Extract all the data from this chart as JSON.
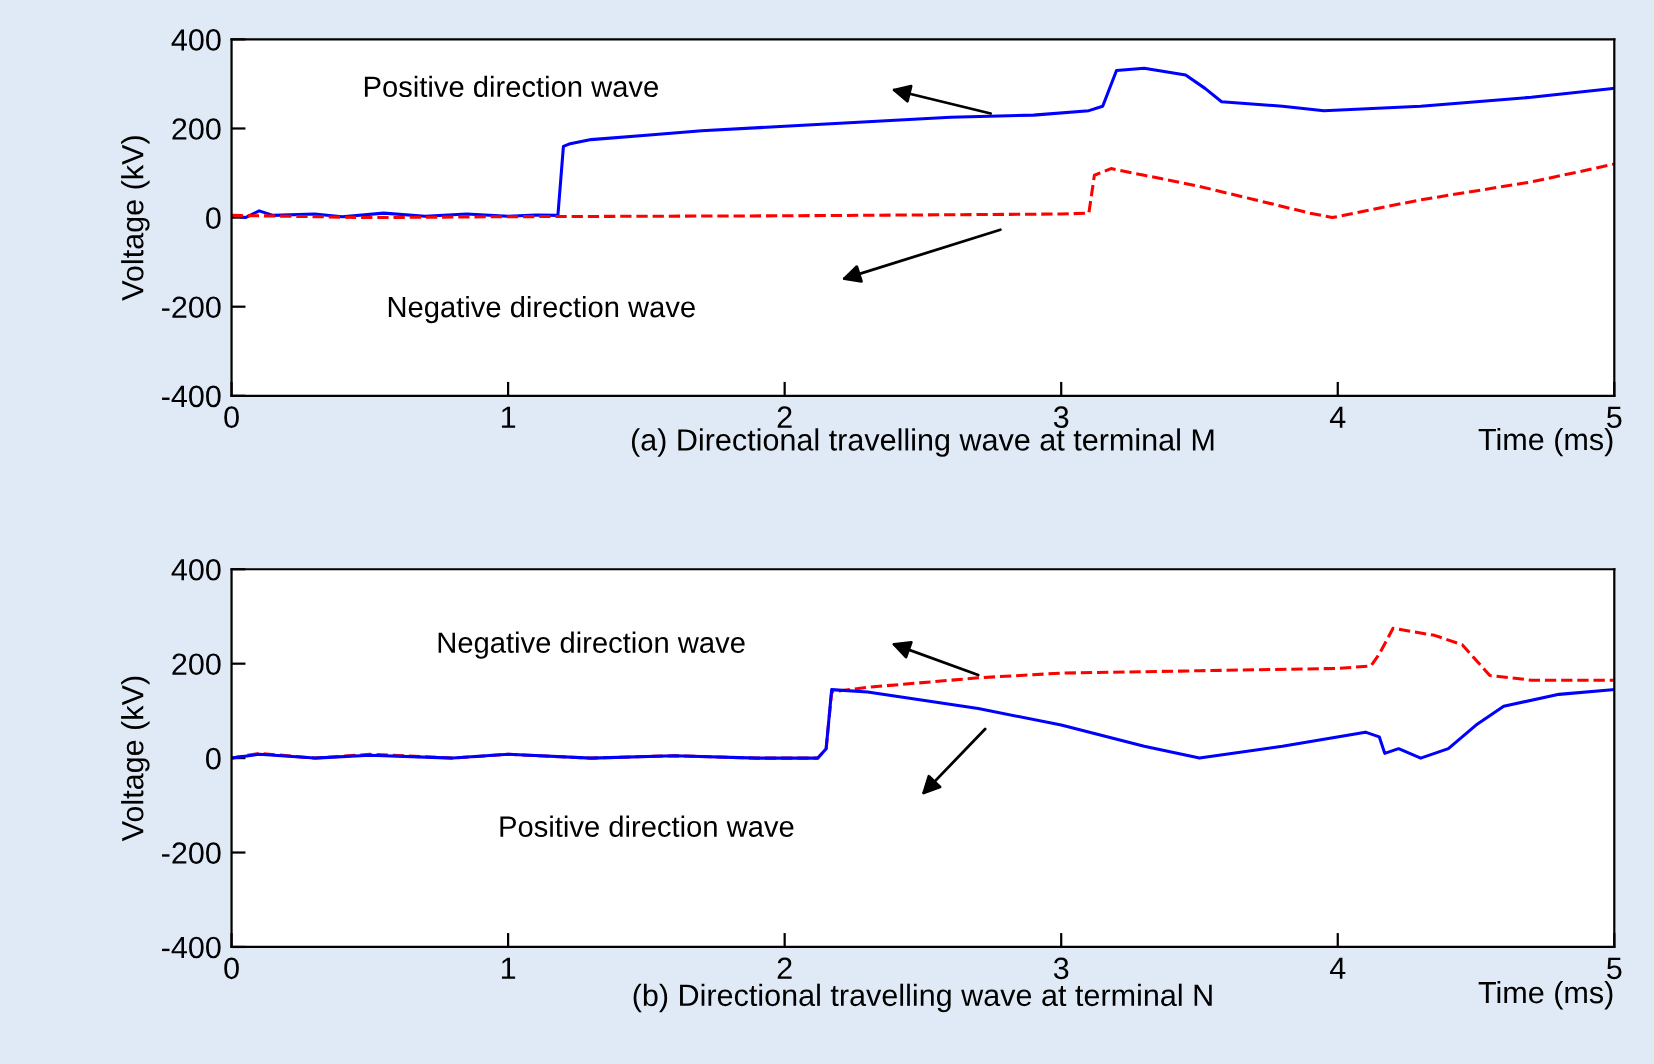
{
  "chart_data": [
    {
      "type": "line",
      "title": "(a) Directional travelling wave at terminal M",
      "xlabel": "Time (ms)",
      "ylabel": "Voltage (kV)",
      "xlim": [
        0,
        5
      ],
      "ylim": [
        -400,
        400
      ],
      "xticks": [
        0,
        1,
        2,
        3,
        4,
        5
      ],
      "yticks": [
        -400,
        -200,
        0,
        200,
        400
      ],
      "grid": false,
      "legend": false,
      "series": [
        {
          "color": "#0000ff",
          "line_style": "solid",
          "x": [
            0,
            0.05,
            0.1,
            0.15,
            0.3,
            0.4,
            0.55,
            0.7,
            0.85,
            1.0,
            1.1,
            1.18,
            1.2,
            1.22,
            1.3,
            1.5,
            1.7,
            2.0,
            2.3,
            2.6,
            2.9,
            3.1,
            3.15,
            3.2,
            3.3,
            3.45,
            3.52,
            3.58,
            3.8,
            3.95,
            4.3,
            4.7,
            5.0
          ],
          "values": [
            5,
            0,
            15,
            5,
            8,
            2,
            10,
            3,
            8,
            3,
            6,
            5,
            160,
            165,
            175,
            185,
            195,
            205,
            215,
            225,
            230,
            240,
            250,
            330,
            335,
            320,
            290,
            260,
            250,
            240,
            250,
            270,
            290
          ]
        },
        {
          "color": "#ff0000",
          "line_style": "dashed",
          "x": [
            0,
            0.5,
            1.0,
            1.5,
            2.0,
            2.5,
            3.0,
            3.1,
            3.12,
            3.18,
            3.3,
            3.5,
            3.7,
            3.9,
            3.98,
            4.3,
            4.7,
            5.0
          ],
          "values": [
            5,
            0,
            2,
            3,
            4,
            6,
            8,
            10,
            95,
            110,
            95,
            70,
            40,
            10,
            0,
            40,
            80,
            120
          ]
        }
      ],
      "annotations": [
        "Positive direction wave",
        "Negative direction wave"
      ]
    },
    {
      "type": "line",
      "title": "(b) Directional travelling wave at terminal N",
      "xlabel": "Time (ms)",
      "ylabel": "Voltage (kV)",
      "xlim": [
        0,
        5
      ],
      "ylim": [
        -400,
        400
      ],
      "xticks": [
        0,
        1,
        2,
        3,
        4,
        5
      ],
      "yticks": [
        -400,
        -200,
        0,
        200,
        400
      ],
      "grid": false,
      "legend": false,
      "series": [
        {
          "color": "#ff0000",
          "line_style": "dashed",
          "x": [
            0,
            0.1,
            0.3,
            0.5,
            0.8,
            1.0,
            1.3,
            1.6,
            1.9,
            2.12,
            2.15,
            2.17,
            2.3,
            2.7,
            3.0,
            3.5,
            4.0,
            4.12,
            4.15,
            4.2,
            4.35,
            4.45,
            4.55,
            4.7,
            5.0
          ],
          "values": [
            0,
            10,
            0,
            8,
            0,
            8,
            0,
            5,
            0,
            0,
            20,
            140,
            150,
            170,
            180,
            185,
            190,
            195,
            220,
            275,
            260,
            240,
            175,
            165,
            165
          ]
        },
        {
          "color": "#0000ff",
          "line_style": "solid",
          "x": [
            0,
            0.1,
            0.3,
            0.5,
            0.8,
            1.0,
            1.3,
            1.6,
            1.9,
            2.12,
            2.15,
            2.17,
            2.3,
            2.7,
            3.0,
            3.3,
            3.5,
            3.8,
            4.1,
            4.15,
            4.17,
            4.22,
            4.3,
            4.4,
            4.5,
            4.6,
            4.8,
            5.0
          ],
          "values": [
            0,
            8,
            0,
            6,
            0,
            8,
            0,
            5,
            0,
            0,
            20,
            145,
            140,
            105,
            70,
            25,
            0,
            25,
            55,
            45,
            10,
            20,
            0,
            20,
            70,
            110,
            135,
            145
          ]
        }
      ],
      "annotations": [
        "Negative direction wave",
        "Positive direction wave"
      ]
    }
  ]
}
